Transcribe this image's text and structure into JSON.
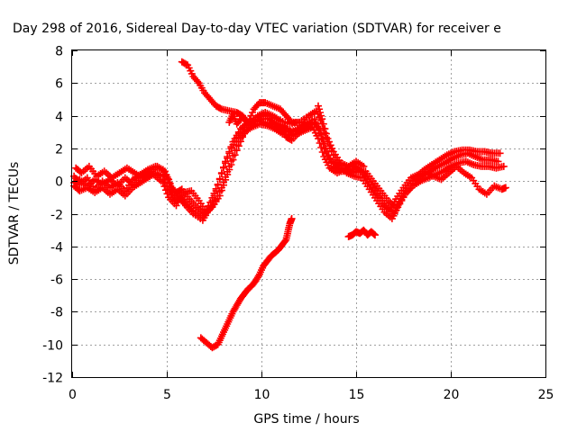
{
  "chart_data": {
    "type": "scatter",
    "title": "Day 298 of 2016, Sidereal Day-to-day VTEC variation (SDTVAR) for receiver e",
    "xlabel": "GPS time / hours",
    "ylabel": "SDTVAR / TECUs",
    "xlim": [
      0,
      25
    ],
    "ylim": [
      -12,
      8
    ],
    "xticks": [
      0,
      5,
      10,
      15,
      20,
      25
    ],
    "yticks": [
      -12,
      -10,
      -8,
      -6,
      -4,
      -2,
      0,
      2,
      4,
      6,
      8
    ],
    "grid": true,
    "marker": "plus",
    "color": "#ff0000",
    "series": [
      {
        "values": [
          [
            0.1,
            0.3
          ],
          [
            0.4,
            -0.2
          ],
          [
            0.8,
            0.2
          ],
          [
            1.2,
            -0.5
          ],
          [
            1.6,
            0
          ],
          [
            2.0,
            -0.4
          ],
          [
            2.4,
            -0.1
          ],
          [
            2.8,
            -0.6
          ],
          [
            3.2,
            0.1
          ],
          [
            3.6,
            0.4
          ],
          [
            4.0,
            0.7
          ],
          [
            4.4,
            0.9
          ],
          [
            4.8,
            0.7
          ],
          [
            5.1,
            0.1
          ],
          [
            5.4,
            -0.9
          ],
          [
            5.7,
            -0.9
          ],
          [
            6.0,
            -1.3
          ],
          [
            6.4,
            -1.8
          ],
          [
            6.9,
            -2.2
          ],
          [
            7.3,
            -1.3
          ],
          [
            7.7,
            -0.2
          ],
          [
            8.1,
            1.2
          ],
          [
            8.5,
            2.4
          ],
          [
            8.9,
            3.2
          ],
          [
            9.3,
            3.6
          ],
          [
            9.7,
            3.7
          ],
          [
            10.1,
            3.6
          ],
          [
            10.5,
            3.5
          ],
          [
            10.9,
            3.2
          ],
          [
            11.3,
            3.0
          ],
          [
            11.8,
            3.1
          ],
          [
            12.3,
            3.5
          ],
          [
            12.8,
            3.8
          ],
          [
            13.1,
            2.9
          ],
          [
            13.4,
            1.7
          ],
          [
            13.8,
            0.9
          ],
          [
            14.2,
            0.6
          ],
          [
            14.6,
            0.6
          ],
          [
            15.0,
            0.8
          ],
          [
            15.4,
            0.5
          ],
          [
            15.8,
            -0.2
          ],
          [
            16.2,
            -0.9
          ],
          [
            16.6,
            -1.5
          ],
          [
            17.0,
            -2.0
          ],
          [
            17.3,
            -1.3
          ],
          [
            17.7,
            -0.6
          ],
          [
            18.1,
            0
          ],
          [
            18.5,
            0.3
          ],
          [
            18.9,
            0.6
          ],
          [
            19.3,
            0.9
          ],
          [
            19.7,
            1.1
          ],
          [
            20.1,
            1.4
          ],
          [
            20.5,
            1.6
          ],
          [
            20.9,
            1.7
          ],
          [
            21.3,
            1.5
          ],
          [
            21.7,
            1.3
          ],
          [
            22.1,
            1.3
          ],
          [
            22.5,
            1.2
          ]
        ]
      },
      {
        "values": [
          [
            0.2,
            0.8
          ],
          [
            0.5,
            0.5
          ],
          [
            0.9,
            0.9
          ],
          [
            1.3,
            0.3
          ],
          [
            1.7,
            0.6
          ],
          [
            2.1,
            0.2
          ],
          [
            2.5,
            0.5
          ],
          [
            2.9,
            0.8
          ],
          [
            3.3,
            0.5
          ],
          [
            3.7,
            0.2
          ],
          [
            4.1,
            0.5
          ],
          [
            4.5,
            0.9
          ],
          [
            4.9,
            0.6
          ],
          [
            5.2,
            -0.3
          ],
          [
            5.5,
            -0.7
          ],
          [
            5.8,
            -0.5
          ],
          [
            6.2,
            -1.1
          ],
          [
            6.6,
            -1.6
          ],
          [
            7.0,
            -2.0
          ],
          [
            7.4,
            -1.6
          ],
          [
            7.8,
            -0.9
          ],
          [
            8.2,
            0.4
          ],
          [
            8.6,
            1.6
          ],
          [
            9.0,
            2.7
          ],
          [
            9.4,
            3.5
          ],
          [
            9.8,
            4.0
          ],
          [
            10.2,
            4.2
          ],
          [
            10.6,
            4.0
          ],
          [
            11.0,
            3.7
          ],
          [
            11.5,
            3.5
          ],
          [
            12.0,
            3.6
          ],
          [
            12.5,
            4.0
          ],
          [
            12.9,
            4.3
          ],
          [
            13.2,
            3.5
          ],
          [
            13.5,
            2.4
          ],
          [
            13.9,
            1.3
          ],
          [
            14.3,
            0.8
          ],
          [
            14.7,
            0.5
          ],
          [
            15.1,
            0.6
          ],
          [
            15.5,
            0.6
          ],
          [
            15.9,
            0
          ],
          [
            16.3,
            -0.6
          ],
          [
            16.7,
            -1.2
          ],
          [
            17.1,
            -1.6
          ],
          [
            17.4,
            -0.9
          ],
          [
            17.8,
            -0.3
          ],
          [
            18.2,
            0.3
          ],
          [
            18.6,
            0.7
          ],
          [
            19.0,
            1.0
          ],
          [
            19.4,
            1.3
          ],
          [
            19.8,
            1.6
          ],
          [
            20.2,
            1.8
          ],
          [
            20.6,
            1.9
          ],
          [
            21.0,
            1.9
          ],
          [
            21.4,
            1.8
          ],
          [
            21.8,
            1.8
          ],
          [
            22.2,
            1.7
          ],
          [
            22.6,
            1.7
          ]
        ]
      },
      {
        "values": [
          [
            0.1,
            -0.3
          ],
          [
            0.4,
            -0.6
          ],
          [
            0.8,
            -0.4
          ],
          [
            1.2,
            -0.7
          ],
          [
            1.6,
            -0.4
          ],
          [
            2.0,
            -0.8
          ],
          [
            2.4,
            -0.5
          ],
          [
            2.8,
            -0.9
          ],
          [
            3.2,
            -0.4
          ],
          [
            3.6,
            -0.1
          ],
          [
            4.0,
            0.2
          ],
          [
            4.4,
            0.5
          ],
          [
            4.8,
            0.3
          ],
          [
            5.1,
            -0.5
          ],
          [
            5.4,
            -1.2
          ],
          [
            5.7,
            -1.1
          ],
          [
            6.0,
            -1.5
          ],
          [
            6.4,
            -2.0
          ],
          [
            6.9,
            -2.4
          ],
          [
            7.2,
            -1.8
          ],
          [
            7.6,
            -0.6
          ],
          [
            8.0,
            0.8
          ],
          [
            8.4,
            2.0
          ],
          [
            8.8,
            2.9
          ],
          [
            9.2,
            3.4
          ],
          [
            9.6,
            3.6
          ],
          [
            10.0,
            3.8
          ],
          [
            10.4,
            3.8
          ],
          [
            10.8,
            3.5
          ],
          [
            11.2,
            3.3
          ],
          [
            11.6,
            3.0
          ],
          [
            12.0,
            3.2
          ],
          [
            12.4,
            3.3
          ],
          [
            12.8,
            3.6
          ],
          [
            13.1,
            3.1
          ],
          [
            13.4,
            2.0
          ],
          [
            13.7,
            1.2
          ],
          [
            14.1,
            0.9
          ],
          [
            14.5,
            0.5
          ],
          [
            14.9,
            0.3
          ],
          [
            15.3,
            0.2
          ],
          [
            15.7,
            -0.5
          ],
          [
            16.1,
            -1.2
          ],
          [
            16.5,
            -1.9
          ],
          [
            16.9,
            -2.3
          ],
          [
            17.2,
            -1.6
          ],
          [
            17.6,
            -0.8
          ],
          [
            18.0,
            -0.3
          ],
          [
            18.4,
            0
          ],
          [
            18.8,
            0.2
          ],
          [
            19.2,
            0.4
          ],
          [
            19.6,
            0.6
          ],
          [
            20.0,
            0.9
          ],
          [
            20.4,
            1.1
          ],
          [
            20.8,
            1.2
          ],
          [
            21.2,
            1.0
          ],
          [
            21.6,
            0.9
          ],
          [
            22.0,
            0.9
          ],
          [
            22.4,
            0.8
          ],
          [
            22.8,
            0.9
          ]
        ]
      },
      {
        "values": [
          [
            0.1,
            -0.1
          ],
          [
            0.4,
            0.1
          ],
          [
            0.8,
            -0.3
          ],
          [
            1.2,
            0.1
          ],
          [
            1.6,
            -0.2
          ],
          [
            2.0,
            0.1
          ],
          [
            2.4,
            -0.3
          ],
          [
            2.8,
            0.2
          ],
          [
            3.2,
            -0.2
          ],
          [
            3.6,
            0.3
          ],
          [
            4.0,
            0.6
          ],
          [
            4.4,
            0.3
          ],
          [
            4.8,
            -0.1
          ],
          [
            5.1,
            -1.0
          ],
          [
            5.5,
            -1.5
          ],
          [
            5.9,
            -0.7
          ],
          [
            6.3,
            -0.6
          ],
          [
            6.7,
            -1.2
          ],
          [
            7.1,
            -1.9
          ],
          [
            7.5,
            -1.4
          ],
          [
            7.9,
            -0.4
          ],
          [
            8.3,
            0.9
          ],
          [
            8.7,
            2.2
          ],
          [
            9.1,
            3.0
          ],
          [
            9.5,
            3.3
          ],
          [
            9.9,
            3.5
          ],
          [
            10.3,
            3.4
          ],
          [
            10.7,
            3.2
          ],
          [
            11.1,
            2.9
          ],
          [
            11.5,
            2.8
          ],
          [
            11.9,
            2.9
          ],
          [
            12.3,
            3.1
          ],
          [
            12.7,
            3.3
          ],
          [
            13.0,
            2.6
          ],
          [
            13.3,
            1.5
          ],
          [
            13.6,
            0.8
          ],
          [
            14.0,
            0.5
          ],
          [
            14.4,
            0.7
          ],
          [
            14.8,
            1.0
          ],
          [
            15.2,
            0.7
          ],
          [
            15.6,
            0.1
          ],
          [
            16.0,
            -0.6
          ],
          [
            16.4,
            -1.4
          ],
          [
            16.8,
            -1.8
          ],
          [
            17.1,
            -1.1
          ],
          [
            17.5,
            -0.4
          ],
          [
            17.9,
            0.2
          ],
          [
            18.3,
            0.4
          ],
          [
            18.7,
            0.5
          ],
          [
            19.1,
            0.3
          ],
          [
            19.5,
            0.1
          ],
          [
            19.9,
            0.5
          ],
          [
            20.3,
            0.9
          ],
          [
            20.7,
            0.5
          ],
          [
            21.1,
            0.2
          ],
          [
            21.5,
            -0.5
          ],
          [
            21.9,
            -0.8
          ],
          [
            22.3,
            -0.3
          ],
          [
            22.7,
            -0.5
          ],
          [
            22.9,
            -0.4
          ]
        ]
      },
      {
        "values": [
          [
            5.8,
            7.3
          ],
          [
            6.1,
            7.1
          ],
          [
            6.4,
            6.4
          ],
          [
            6.7,
            6.0
          ],
          [
            7.0,
            5.4
          ],
          [
            7.3,
            5.0
          ],
          [
            7.6,
            4.6
          ],
          [
            7.9,
            4.4
          ],
          [
            8.3,
            4.3
          ],
          [
            8.7,
            4.2
          ],
          [
            9.0,
            4.0
          ],
          [
            9.3,
            3.6
          ],
          [
            9.6,
            4.4
          ],
          [
            9.9,
            4.8
          ],
          [
            10.2,
            4.8
          ],
          [
            10.6,
            4.6
          ],
          [
            11.0,
            4.4
          ],
          [
            11.3,
            4.0
          ],
          [
            11.6,
            3.6
          ],
          [
            12.0,
            3.6
          ]
        ]
      },
      {
        "values": [
          [
            8.3,
            3.6
          ],
          [
            8.5,
            4.1
          ],
          [
            8.7,
            3.5
          ],
          [
            9.0,
            3.9
          ],
          [
            9.4,
            3.4
          ],
          [
            9.8,
            3.9
          ],
          [
            10.2,
            4.1
          ],
          [
            10.6,
            3.6
          ],
          [
            11.0,
            3.3
          ],
          [
            11.3,
            2.7
          ],
          [
            11.6,
            2.5
          ],
          [
            12.0,
            3.0
          ],
          [
            12.3,
            3.6
          ]
        ]
      },
      {
        "values": [
          [
            13.0,
            4.6
          ],
          [
            13.2,
            3.8
          ],
          [
            13.5,
            2.6
          ],
          [
            13.8,
            1.8
          ],
          [
            14.2,
            1.1
          ],
          [
            14.6,
            0.9
          ],
          [
            15.0,
            1.2
          ],
          [
            15.4,
            0.9
          ]
        ]
      },
      {
        "values": [
          [
            6.8,
            -9.6
          ],
          [
            7.1,
            -9.9
          ],
          [
            7.4,
            -10.2
          ],
          [
            7.7,
            -10.0
          ],
          [
            7.9,
            -9.5
          ],
          [
            8.1,
            -9.0
          ],
          [
            8.3,
            -8.5
          ],
          [
            8.5,
            -8.0
          ],
          [
            8.7,
            -7.6
          ],
          [
            8.9,
            -7.2
          ],
          [
            9.1,
            -6.9
          ],
          [
            9.3,
            -6.6
          ],
          [
            9.5,
            -6.4
          ],
          [
            9.7,
            -6.1
          ],
          [
            9.9,
            -5.7
          ],
          [
            10.1,
            -5.2
          ],
          [
            10.3,
            -4.9
          ],
          [
            10.5,
            -4.6
          ],
          [
            10.7,
            -4.4
          ],
          [
            10.9,
            -4.2
          ],
          [
            11.1,
            -3.9
          ],
          [
            11.3,
            -3.6
          ],
          [
            11.4,
            -3.1
          ],
          [
            11.5,
            -2.6
          ],
          [
            11.6,
            -2.3
          ]
        ]
      },
      {
        "values": [
          [
            14.6,
            -3.4
          ],
          [
            14.8,
            -3.3
          ],
          [
            15.0,
            -3.1
          ],
          [
            15.2,
            -3.2
          ],
          [
            15.4,
            -3.0
          ],
          [
            15.6,
            -3.3
          ],
          [
            15.8,
            -3.1
          ],
          [
            16.0,
            -3.3
          ]
        ]
      }
    ]
  }
}
